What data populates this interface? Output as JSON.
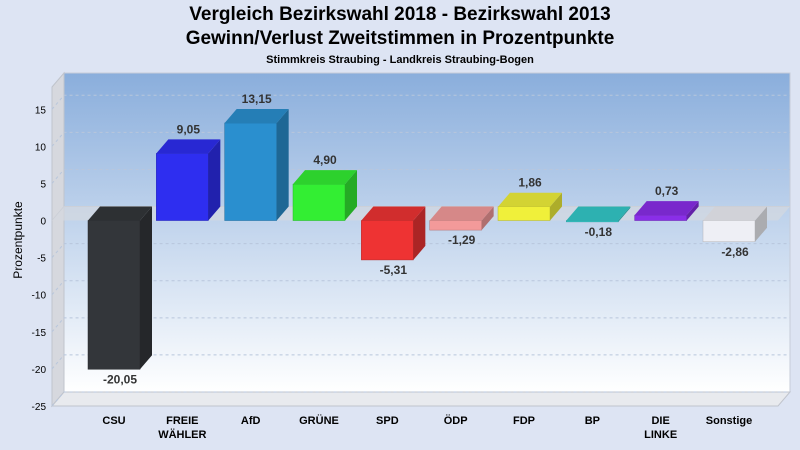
{
  "chart_data": {
    "type": "bar",
    "title": "Vergleich Bezirkswahl 2018 - Bezirkswahl 2013",
    "subtitle": "Gewinn/Verlust Zweitstimmen in Prozentpunkte",
    "caption": "Stimmkreis Straubing - Landkreis Straubing-Bogen",
    "ylabel": "Prozentpunkte",
    "ylim": [
      -25,
      18
    ],
    "yticks": [
      -25,
      -20,
      -15,
      -10,
      -5,
      0,
      5,
      10,
      15
    ],
    "grid": true,
    "categories": [
      [
        "CSU"
      ],
      [
        "FREIE",
        "WÄHLER"
      ],
      [
        "AfD"
      ],
      [
        "GRÜNE"
      ],
      [
        "SPD"
      ],
      [
        "ÖDP"
      ],
      [
        "FDP"
      ],
      [
        "BP"
      ],
      [
        "DIE",
        "LINKE"
      ],
      [
        "Sonstige"
      ]
    ],
    "values": [
      -20.05,
      9.05,
      13.15,
      4.9,
      -5.31,
      -1.29,
      1.86,
      -0.18,
      0.73,
      -2.86
    ],
    "value_labels": [
      "-20,05",
      "9,05",
      "13,15",
      "4,90",
      "-5,31",
      "-1,29",
      "1,86",
      "-0,18",
      "0,73",
      "-2,86"
    ],
    "colors": [
      "#33363a",
      "#2e2ef0",
      "#2a8fcf",
      "#33ee33",
      "#ee3333",
      "#f39a9a",
      "#f0f03a",
      "#33c9c9",
      "#8a2ee8",
      "#eeeff5"
    ]
  }
}
